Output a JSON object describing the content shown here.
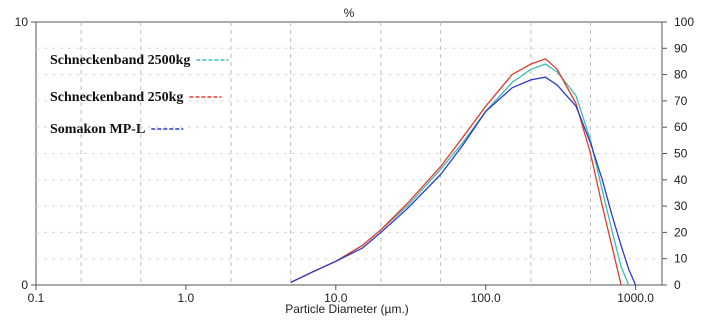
{
  "chart_data": {
    "type": "line",
    "title": "%",
    "xlabel": "Particle Diameter (µm.)",
    "ylabel": "",
    "x_scale": "log",
    "xlim": [
      0.1,
      1500
    ],
    "ylim_left": [
      0,
      10
    ],
    "ylim_right": [
      0,
      100
    ],
    "x_ticks": [
      {
        "value": 0.1,
        "label": "0.1"
      },
      {
        "value": 1,
        "label": "1.0"
      },
      {
        "value": 10,
        "label": "10.0"
      },
      {
        "value": 100,
        "label": "100.0"
      },
      {
        "value": 1000,
        "label": "1000.0"
      }
    ],
    "left_ticks": [
      {
        "value": 0,
        "label": "0"
      },
      {
        "value": 10,
        "label": "10"
      }
    ],
    "right_ticks": [
      {
        "value": 0,
        "label": "0"
      },
      {
        "value": 10,
        "label": "10"
      },
      {
        "value": 20,
        "label": "20"
      },
      {
        "value": 30,
        "label": "30"
      },
      {
        "value": 40,
        "label": "40"
      },
      {
        "value": 50,
        "label": "50"
      },
      {
        "value": 60,
        "label": "60"
      },
      {
        "value": 70,
        "label": "70"
      },
      {
        "value": 80,
        "label": "80"
      },
      {
        "value": 90,
        "label": "90"
      },
      {
        "value": 100,
        "label": "100"
      }
    ],
    "grid": true,
    "legend_position": "top-left",
    "series": [
      {
        "name": "Schneckenband 2500kg",
        "color": "#3cbcb4",
        "line_style": "dash",
        "x": [
          5,
          7,
          10,
          15,
          20,
          30,
          50,
          70,
          100,
          150,
          200,
          250,
          300,
          400,
          500,
          600,
          700,
          800,
          900
        ],
        "y": [
          0.1,
          0.5,
          0.9,
          1.5,
          2.1,
          3.0,
          4.4,
          5.4,
          6.6,
          7.7,
          8.2,
          8.4,
          8.1,
          7.2,
          5.5,
          3.6,
          2.0,
          0.7,
          0
        ]
      },
      {
        "name": "Schneckenband 250kg",
        "color": "#e03c2c",
        "line_style": "dash",
        "x": [
          5,
          7,
          10,
          15,
          20,
          30,
          50,
          70,
          100,
          150,
          200,
          250,
          300,
          400,
          500,
          600,
          700,
          800
        ],
        "y": [
          0.1,
          0.5,
          0.9,
          1.5,
          2.1,
          3.1,
          4.5,
          5.6,
          6.8,
          8.0,
          8.4,
          8.6,
          8.2,
          6.9,
          5.0,
          3.0,
          1.4,
          0
        ]
      },
      {
        "name": "Somakon MP-L",
        "color": "#2c3cc8",
        "line_style": "dash",
        "x": [
          5,
          7,
          10,
          15,
          20,
          30,
          50,
          70,
          100,
          150,
          200,
          250,
          300,
          400,
          500,
          600,
          700,
          800,
          900,
          1000
        ],
        "y": [
          0.1,
          0.5,
          0.9,
          1.4,
          2.0,
          2.9,
          4.2,
          5.3,
          6.6,
          7.5,
          7.8,
          7.9,
          7.6,
          6.8,
          5.4,
          4.0,
          2.6,
          1.5,
          0.6,
          0
        ]
      }
    ]
  }
}
